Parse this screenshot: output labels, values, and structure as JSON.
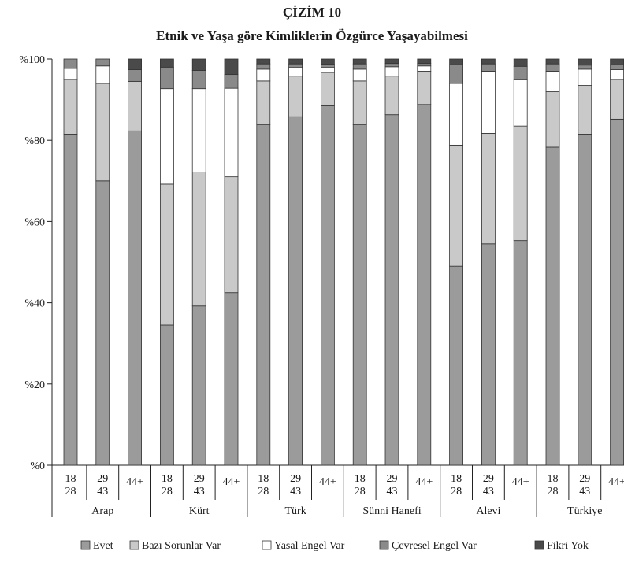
{
  "chart_data": {
    "type": "bar",
    "stacked": true,
    "title": "ÇİZİM 10",
    "subtitle": "Etnik ve Yaşa göre Kimliklerin Özgürce Yaşayabilmesi",
    "ylim": [
      0,
      100
    ],
    "yticks": [
      "%0",
      "%20",
      "%40",
      "%60",
      "%80",
      "%100"
    ],
    "groups": [
      {
        "name": "Arap",
        "bars": [
          {
            "label": [
              "18",
              "28"
            ],
            "values": [
              81.5,
              13.5,
              2.7,
              2.3,
              0.0
            ]
          },
          {
            "label": [
              "29",
              "43"
            ],
            "values": [
              70.0,
              24.0,
              4.3,
              1.7,
              0.0
            ]
          },
          {
            "label": [
              "44+"
            ],
            "values": [
              82.3,
              12.2,
              0.0,
              2.9,
              2.6
            ]
          }
        ]
      },
      {
        "name": "Kürt",
        "bars": [
          {
            "label": [
              "18",
              "28"
            ],
            "values": [
              34.5,
              34.7,
              23.5,
              5.3,
              2.0
            ]
          },
          {
            "label": [
              "29",
              "43"
            ],
            "values": [
              39.2,
              33.0,
              20.5,
              4.5,
              2.8
            ]
          },
          {
            "label": [
              "44+"
            ],
            "values": [
              42.5,
              28.5,
              21.8,
              3.4,
              3.8
            ]
          }
        ]
      },
      {
        "name": "Türk",
        "bars": [
          {
            "label": [
              "18",
              "28"
            ],
            "values": [
              83.8,
              10.8,
              2.9,
              1.3,
              1.2
            ]
          },
          {
            "label": [
              "29",
              "43"
            ],
            "values": [
              85.8,
              10.0,
              2.1,
              0.9,
              1.2
            ]
          },
          {
            "label": [
              "44+"
            ],
            "values": [
              88.5,
              8.2,
              1.2,
              0.8,
              1.3
            ]
          }
        ]
      },
      {
        "name": "Sünni Hanefi",
        "bars": [
          {
            "label": [
              "18",
              "28"
            ],
            "values": [
              83.8,
              10.8,
              2.9,
              1.3,
              1.2
            ]
          },
          {
            "label": [
              "29",
              "43"
            ],
            "values": [
              86.3,
              9.5,
              2.3,
              0.8,
              1.1
            ]
          },
          {
            "label": [
              "44+"
            ],
            "values": [
              88.8,
              8.2,
              1.3,
              0.6,
              1.1
            ]
          }
        ]
      },
      {
        "name": "Alevi",
        "bars": [
          {
            "label": [
              "18",
              "28"
            ],
            "values": [
              49.0,
              29.8,
              15.2,
              4.6,
              1.4
            ]
          },
          {
            "label": [
              "29",
              "43"
            ],
            "values": [
              54.5,
              27.2,
              15.3,
              1.8,
              1.2
            ]
          },
          {
            "label": [
              "44+"
            ],
            "values": [
              55.3,
              28.2,
              11.5,
              3.2,
              1.8
            ]
          }
        ]
      },
      {
        "name": "Türkiye",
        "bars": [
          {
            "label": [
              "18",
              "28"
            ],
            "values": [
              78.3,
              13.7,
              5.0,
              1.8,
              1.2
            ]
          },
          {
            "label": [
              "29",
              "43"
            ],
            "values": [
              81.5,
              12.0,
              4.0,
              1.0,
              1.5
            ]
          },
          {
            "label": [
              "44+"
            ],
            "values": [
              85.2,
              9.8,
              2.4,
              1.2,
              1.4
            ]
          }
        ]
      }
    ],
    "series": [
      {
        "name": "Evet",
        "color": "#9b9b9b"
      },
      {
        "name": "Bazı Sorunlar Var",
        "color": "#c9c9c9"
      },
      {
        "name": "Yasal Engel Var",
        "color": "#ffffff"
      },
      {
        "name": "Çevresel Engel Var",
        "color": "#8a8a8a"
      },
      {
        "name": "Fikri Yok",
        "color": "#4a4a4a"
      }
    ],
    "legend_position": "bottom",
    "grid": false
  }
}
